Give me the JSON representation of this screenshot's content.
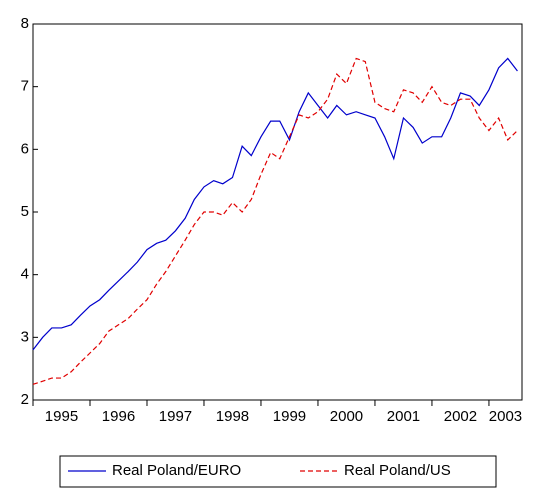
{
  "chart_data": {
    "type": "line",
    "x": [
      1995,
      1995.17,
      1995.33,
      1995.5,
      1995.67,
      1995.83,
      1996,
      1996.17,
      1996.33,
      1996.5,
      1996.67,
      1996.83,
      1997,
      1997.17,
      1997.33,
      1997.5,
      1997.67,
      1997.83,
      1998,
      1998.17,
      1998.33,
      1998.5,
      1998.67,
      1998.83,
      1999,
      1999.17,
      1999.33,
      1999.5,
      1999.67,
      1999.83,
      2000,
      2000.17,
      2000.33,
      2000.5,
      2000.67,
      2000.83,
      2001,
      2001.17,
      2001.33,
      2001.5,
      2001.67,
      2001.83,
      2002,
      2002.17,
      2002.33,
      2002.5,
      2002.67,
      2002.83,
      2003,
      2003.17,
      2003.33,
      2003.5
    ],
    "series": [
      {
        "name": "Real Poland/EURO",
        "color": "#0000cc",
        "dash": "solid",
        "values": [
          2.8,
          3.0,
          3.15,
          3.15,
          3.2,
          3.35,
          3.5,
          3.6,
          3.75,
          3.9,
          4.05,
          4.2,
          4.4,
          4.5,
          4.55,
          4.7,
          4.9,
          5.2,
          5.4,
          5.5,
          5.45,
          5.55,
          6.05,
          5.9,
          6.2,
          6.45,
          6.45,
          6.15,
          6.6,
          6.9,
          6.7,
          6.5,
          6.7,
          6.55,
          6.6,
          6.55,
          6.5,
          6.2,
          5.85,
          6.5,
          6.35,
          6.1,
          6.2,
          6.2,
          6.5,
          6.9,
          6.85,
          6.7,
          6.95,
          7.3,
          7.45,
          7.25
        ]
      },
      {
        "name": "Real Poland/US",
        "color": "#e00000",
        "dash": "dashed",
        "values": [
          2.25,
          2.3,
          2.35,
          2.35,
          2.45,
          2.6,
          2.75,
          2.9,
          3.1,
          3.2,
          3.3,
          3.45,
          3.6,
          3.85,
          4.05,
          4.3,
          4.55,
          4.8,
          5.0,
          5.0,
          4.95,
          5.15,
          5.0,
          5.2,
          5.6,
          5.95,
          5.85,
          6.2,
          6.55,
          6.5,
          6.6,
          6.8,
          7.2,
          7.05,
          7.45,
          7.4,
          6.75,
          6.65,
          6.6,
          6.95,
          6.9,
          6.75,
          7.0,
          6.75,
          6.7,
          6.8,
          6.8,
          6.5,
          6.3,
          6.5,
          6.15,
          6.3
        ]
      }
    ],
    "xlim": [
      1995,
      2003.58
    ],
    "xticks": [
      1995,
      1996,
      1997,
      1998,
      1999,
      2000,
      2001,
      2002,
      2003
    ],
    "ylim": [
      2,
      8
    ],
    "yticks": [
      2,
      3,
      4,
      5,
      6,
      7,
      8
    ],
    "grid": false,
    "legend": "bottom"
  }
}
